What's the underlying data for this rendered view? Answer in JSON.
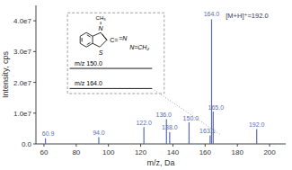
{
  "chart_data": {
    "type": "stem",
    "x": [
      60.9,
      94.0,
      122.0,
      136.0,
      138.0,
      150.0,
      163.1,
      164.0,
      165.0,
      192.0
    ],
    "values": [
      1800000,
      2200000,
      5500000,
      8000000,
      3800000,
      7000000,
      2800000,
      40500000,
      10500000,
      4800000
    ],
    "labels": [
      "60.9",
      "94.0",
      "122.0",
      "136.0",
      "138.0",
      "150.0",
      "163.1",
      "164.0",
      "165.0",
      "192.0"
    ],
    "color": "#5b6bb5",
    "xlim": [
      55,
      210
    ],
    "ylim": [
      0,
      45000000
    ],
    "xticks": [
      60,
      80,
      100,
      120,
      140,
      160,
      180,
      200
    ],
    "yticks": [
      {
        "value": 0,
        "label": "0.0"
      },
      {
        "value": 10000000,
        "label": "1.0e7"
      },
      {
        "value": 20000000,
        "label": "2.0e7"
      },
      {
        "value": 30000000,
        "label": "3.0e7"
      },
      {
        "value": 40000000,
        "label": "4.0e7"
      }
    ],
    "xlabel": "m/z, Da",
    "ylabel": "Intensity, cps",
    "annotations": [
      "[M+H]⁺=192.0",
      "m/z 150.0",
      "m/z 164.0",
      "S",
      "N",
      "CH₃",
      "C=",
      "=N",
      "N=CH₂"
    ]
  }
}
